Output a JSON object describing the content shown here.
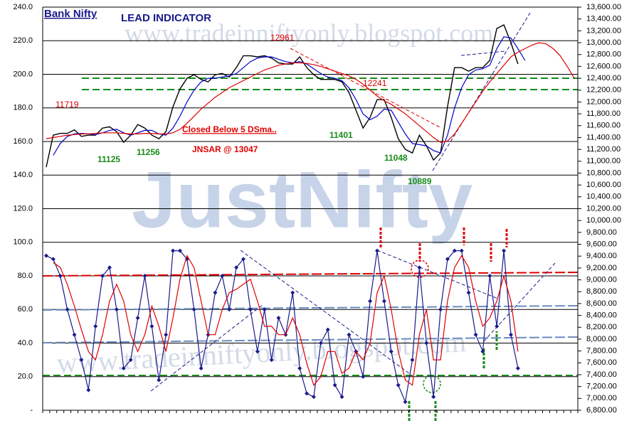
{
  "chart_data": {
    "type": "line",
    "title": "Bank Nifty",
    "subtitle": "LEAD INDICATOR",
    "watermarks": [
      "www.tradeinniftyonly.blogspot.com",
      "JustNifty",
      "www.tradeinniftyonly.blogspot.com"
    ],
    "annotations": [
      "11719",
      "12961",
      "12241",
      "11125",
      "11256",
      "11401",
      "11048",
      "10889",
      "Closed  Below 5 DSma..",
      "JNSAR @ 13047"
    ],
    "ylim": [
      0,
      240
    ],
    "yticks": [
      {
        "value": 0,
        "label": "-"
      },
      {
        "value": 20,
        "label": "20.0"
      },
      {
        "value": 40,
        "label": "40.0"
      },
      {
        "value": 60,
        "label": "60.0"
      },
      {
        "value": 80,
        "label": "80.0"
      },
      {
        "value": 100,
        "label": "100.0"
      },
      {
        "value": 120,
        "label": "120.0"
      },
      {
        "value": 140,
        "label": "140.0"
      },
      {
        "value": 160,
        "label": "160.0"
      },
      {
        "value": 180,
        "label": "180.0"
      },
      {
        "value": 200,
        "label": "200.0"
      },
      {
        "value": 220,
        "label": "220.0"
      },
      {
        "value": 240,
        "label": "240.0"
      }
    ],
    "y2lim": [
      6800,
      13600
    ],
    "y2ticks": [
      {
        "value": 6800,
        "label": "6,800.00"
      },
      {
        "value": 7000,
        "label": "7,000.00"
      },
      {
        "value": 7200,
        "label": "7,200.00"
      },
      {
        "value": 7400,
        "label": "7,400.00"
      },
      {
        "value": 7600,
        "label": "7,600.00"
      },
      {
        "value": 7800,
        "label": "7,800.00"
      },
      {
        "value": 8000,
        "label": "8,000.00"
      },
      {
        "value": 8200,
        "label": "8,200.00"
      },
      {
        "value": 8400,
        "label": "8,400.00"
      },
      {
        "value": 8600,
        "label": "8,600.00"
      },
      {
        "value": 8800,
        "label": "8,800.00"
      },
      {
        "value": 9000,
        "label": "9,000.00"
      },
      {
        "value": 9200,
        "label": "9,200.00"
      },
      {
        "value": 9400,
        "label": "9,400.00"
      },
      {
        "value": 9600,
        "label": "9,600.00"
      },
      {
        "value": 9800,
        "label": "9,800.00"
      },
      {
        "value": 10000,
        "label": "10,000.00"
      },
      {
        "value": 10200,
        "label": "10,200.00"
      },
      {
        "value": 10400,
        "label": "10,400.00"
      },
      {
        "value": 10600,
        "label": "10,600.00"
      },
      {
        "value": 10800,
        "label": "10,800.00"
      },
      {
        "value": 11000,
        "label": "11,000.00"
      },
      {
        "value": 11200,
        "label": "11,200.00"
      },
      {
        "value": 11400,
        "label": "11,400.00"
      },
      {
        "value": 11600,
        "label": "11,600.00"
      },
      {
        "value": 11800,
        "label": "11,800.00"
      },
      {
        "value": 12000,
        "label": "12,000.00"
      },
      {
        "value": 12200,
        "label": "12,200.00"
      },
      {
        "value": 12400,
        "label": "12,400.00"
      },
      {
        "value": 12600,
        "label": "12,600.00"
      },
      {
        "value": 12800,
        "label": "12,800.00"
      },
      {
        "value": 13000,
        "label": "13,000.00"
      },
      {
        "value": 13200,
        "label": "13,200.00"
      },
      {
        "value": 13400,
        "label": "13,400.00"
      },
      {
        "value": 13600,
        "label": "13,600.00"
      }
    ],
    "grid": true,
    "series": [
      {
        "color": "#000000",
        "axis": "y2",
        "markers": false,
        "values": [
          10900,
          11440,
          11470,
          11470,
          11530,
          11420,
          11440,
          11440,
          11560,
          11580,
          11500,
          11320,
          11440,
          11620,
          11560,
          11440,
          11380,
          11500,
          11920,
          12220,
          12400,
          12460,
          12380,
          12340,
          12460,
          12480,
          12420,
          12580,
          12780,
          12780,
          12760,
          12780,
          12740,
          12660,
          12640,
          12640,
          12760,
          12580,
          12460,
          12380,
          12380,
          12380,
          12340,
          12160,
          11860,
          11560,
          11740,
          12040,
          12040,
          11740,
          11380,
          11200,
          11140,
          11440,
          11260,
          11020,
          11140,
          11920,
          12580,
          12580,
          12520,
          12580,
          12580,
          12700,
          13240,
          13300,
          13000,
          12640,
          null,
          null,
          null,
          null,
          null,
          null,
          null,
          null
        ]
      },
      {
        "color": "#0000cc",
        "axis": "y2",
        "markers": false,
        "values": [
          null,
          11100,
          11300,
          11420,
          11460,
          11470,
          11460,
          11450,
          11480,
          11520,
          11540,
          11480,
          11440,
          11480,
          11520,
          11520,
          11460,
          11440,
          11560,
          11760,
          12000,
          12200,
          12340,
          12400,
          12400,
          12420,
          12440,
          12480,
          12580,
          12680,
          12740,
          12760,
          12760,
          12720,
          12680,
          12660,
          12680,
          12640,
          12560,
          12480,
          12420,
          12400,
          12360,
          12240,
          12040,
          11800,
          11700,
          11760,
          11880,
          11860,
          11660,
          11460,
          11300,
          11280,
          11260,
          11180,
          11140,
          11440,
          11900,
          12240,
          12460,
          12540,
          12560,
          12620,
          12900,
          13100,
          13080,
          12900,
          12700,
          null,
          null,
          null,
          null,
          null,
          null,
          null
        ]
      },
      {
        "color": "#e00000",
        "axis": "y2",
        "markers": false,
        "values": [
          11380,
          11400,
          11420,
          11440,
          11450,
          11460,
          11460,
          11470,
          11480,
          11480,
          11480,
          11470,
          11460,
          11460,
          11470,
          11470,
          11460,
          11460,
          11480,
          11540,
          11640,
          11760,
          11880,
          11980,
          12080,
          12160,
          12240,
          12300,
          12360,
          12420,
          12480,
          12540,
          12580,
          12620,
          12640,
          12660,
          12660,
          12650,
          12630,
          12600,
          12560,
          12520,
          12480,
          12440,
          12380,
          12300,
          12200,
          12100,
          12020,
          11960,
          11880,
          11800,
          11700,
          11600,
          11500,
          11400,
          11320,
          11340,
          11460,
          11640,
          11820,
          12000,
          12180,
          12340,
          12480,
          12620,
          12760,
          12840,
          12900,
          12960,
          13000,
          12980,
          12900,
          12780,
          12600,
          12400
        ]
      },
      {
        "color": "#1a1a8c",
        "markers": true,
        "values": [
          92,
          90,
          80,
          60,
          45,
          30,
          12,
          50,
          80,
          85,
          60,
          25,
          30,
          55,
          80,
          50,
          18,
          45,
          95,
          95,
          90,
          60,
          25,
          45,
          70,
          80,
          60,
          85,
          90,
          60,
          35,
          60,
          30,
          55,
          45,
          70,
          25,
          10,
          8,
          40,
          48,
          15,
          8,
          45,
          35,
          20,
          65,
          95,
          65,
          35,
          15,
          5,
          30,
          85,
          40,
          8,
          60,
          90,
          95,
          95,
          70,
          45,
          35,
          80,
          50,
          95,
          45,
          25,
          null,
          null,
          null,
          null,
          null,
          null,
          null,
          null
        ]
      },
      {
        "color": "#e00000",
        "markers": false,
        "values": [
          null,
          88,
          85,
          75,
          62,
          48,
          35,
          30,
          45,
          65,
          75,
          65,
          45,
          35,
          45,
          62,
          50,
          35,
          55,
          78,
          92,
          85,
          65,
          45,
          45,
          60,
          70,
          72,
          75,
          78,
          65,
          50,
          50,
          45,
          45,
          55,
          45,
          28,
          15,
          20,
          35,
          35,
          22,
          25,
          35,
          30,
          40,
          70,
          80,
          60,
          35,
          18,
          15,
          45,
          60,
          30,
          30,
          65,
          85,
          92,
          85,
          65,
          50,
          55,
          65,
          80,
          65,
          35,
          null,
          null,
          null,
          null,
          null,
          null,
          null,
          null
        ]
      }
    ]
  }
}
